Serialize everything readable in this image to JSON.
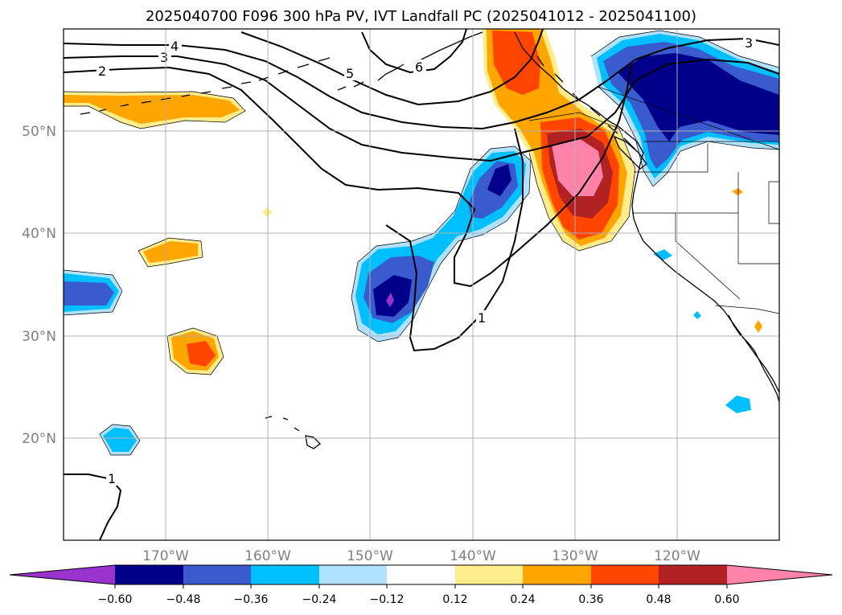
{
  "title": "2025040700 F096 300 hPa PV, IVT Landfall PC (2025041012 - 2025041100)",
  "map": {
    "lat_labels": [
      "50°N",
      "40°N",
      "30°N",
      "20°N"
    ],
    "lon_labels": [
      "170°W",
      "160°W",
      "150°W",
      "140°W",
      "130°W",
      "120°W"
    ],
    "contour_labels": [
      "2",
      "3",
      "4",
      "5",
      "6",
      "3",
      "1",
      "1"
    ]
  },
  "colorbar": {
    "ticks": [
      "−0.60",
      "−0.48",
      "−0.36",
      "−0.24",
      "−0.12",
      "0.12",
      "0.24",
      "0.36",
      "0.48",
      "0.60"
    ],
    "colors": [
      "#9a32cd",
      "#00008b",
      "#3a5bcd",
      "#00bfff",
      "#b0e2ff",
      "#ffffff",
      "#ffec8b",
      "#ffa500",
      "#ff4500",
      "#b22222",
      "#ff82ab"
    ]
  }
}
